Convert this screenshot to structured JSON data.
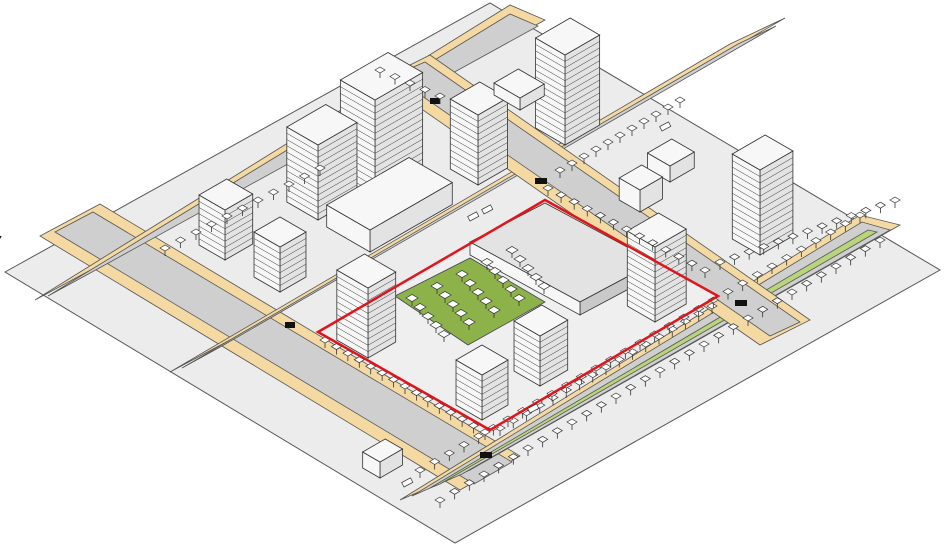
{
  "colors": {
    "background": "#ffffff",
    "ground": "#ececec",
    "road": "#cfcfcf",
    "sidewalk": "#f4d9a3",
    "median_green": "#b9d47a",
    "park": "#8db24a",
    "boundary": "#e0151c",
    "building_light": "#f7f7f7",
    "building_mid": "#e3e3e3",
    "building_dark": "#c9c9c9",
    "line": "#333333",
    "crosswalk": "#111111"
  },
  "legend": []
}
